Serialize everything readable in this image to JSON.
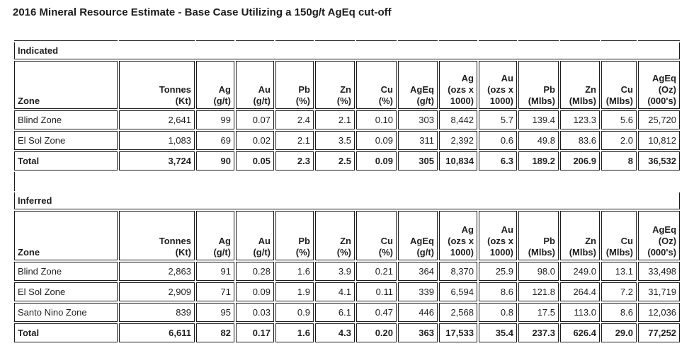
{
  "page": {
    "title": "2016 Mineral Resource Estimate - Base Case Utilizing a 150g/t AgEq cut-off"
  },
  "colors": {
    "text": "#1f1f1f",
    "border": "#1c1c1c",
    "background": "#ffffff"
  },
  "table": {
    "header": {
      "zone_label": "Zone",
      "columns": [
        {
          "name": "tonnes-kt",
          "lines": [
            "Tonnes",
            "(Kt)"
          ]
        },
        {
          "name": "ag-gpt",
          "lines": [
            "Ag",
            "(g/t)"
          ]
        },
        {
          "name": "au-gpt",
          "lines": [
            "Au",
            "(g/t)"
          ]
        },
        {
          "name": "pb-pct",
          "lines": [
            "Pb",
            "(%)"
          ]
        },
        {
          "name": "zn-pct",
          "lines": [
            "Zn",
            "(%)"
          ]
        },
        {
          "name": "cu-pct",
          "lines": [
            "Cu",
            "(%)"
          ]
        },
        {
          "name": "ageq-gpt",
          "lines": [
            "AgEq",
            "(g/t)"
          ]
        },
        {
          "name": "ag-koz",
          "lines": [
            "Ag",
            "(ozs x",
            "1000)"
          ]
        },
        {
          "name": "au-koz",
          "lines": [
            "Au",
            "(ozs x",
            "1000)"
          ]
        },
        {
          "name": "pb-mlbs",
          "lines": [
            "Pb",
            "(Mlbs)"
          ]
        },
        {
          "name": "zn-mlbs",
          "lines": [
            "Zn",
            "(Mlbs)"
          ]
        },
        {
          "name": "cu-mlbs",
          "lines": [
            "Cu",
            "(Mlbs)"
          ]
        },
        {
          "name": "ageq-koz",
          "lines": [
            "AgEq",
            "(Oz)",
            "(000's)"
          ]
        }
      ]
    },
    "sections": [
      {
        "name": "Indicated",
        "rows": [
          {
            "zone": "Blind Zone",
            "bold": false,
            "values": [
              "2,641",
              "99",
              "0.07",
              "2.4",
              "2.1",
              "0.10",
              "303",
              "8,442",
              "5.7",
              "139.4",
              "123.3",
              "5.6",
              "25,720"
            ]
          },
          {
            "zone": "El Sol Zone",
            "bold": false,
            "values": [
              "1,083",
              "69",
              "0.02",
              "2.1",
              "3.5",
              "0.09",
              "311",
              "2,392",
              "0.6",
              "49.8",
              "83.6",
              "2.0",
              "10,812"
            ]
          },
          {
            "zone": "Total",
            "bold": true,
            "values": [
              "3,724",
              "90",
              "0.05",
              "2.3",
              "2.5",
              "0.09",
              "305",
              "10,834",
              "6.3",
              "189.2",
              "206.9",
              "8",
              "36,532"
            ]
          }
        ]
      },
      {
        "name": "Inferred",
        "rows": [
          {
            "zone": "Blind Zone",
            "bold": false,
            "values": [
              "2,863",
              "91",
              "0.28",
              "1.6",
              "3.9",
              "0.21",
              "364",
              "8,370",
              "25.9",
              "98.0",
              "249.0",
              "13.1",
              "33,498"
            ]
          },
          {
            "zone": "El Sol Zone",
            "bold": false,
            "values": [
              "2,909",
              "71",
              "0.09",
              "1.9",
              "4.1",
              "0.11",
              "339",
              "6,594",
              "8.6",
              "121.8",
              "264.4",
              "7.2",
              "31,719"
            ]
          },
          {
            "zone": "Santo Nino Zone",
            "bold": false,
            "values": [
              "839",
              "95",
              "0.03",
              "0.9",
              "6.1",
              "0.47",
              "446",
              "2,568",
              "0.8",
              "17.5",
              "113.0",
              "8.6",
              "12,036"
            ]
          },
          {
            "zone": "Total",
            "bold": true,
            "values": [
              "6,611",
              "82",
              "0.17",
              "1.6",
              "4.3",
              "0.20",
              "363",
              "17,533",
              "35.4",
              "237.3",
              "626.4",
              "29.0",
              "77,252"
            ]
          }
        ]
      }
    ]
  }
}
